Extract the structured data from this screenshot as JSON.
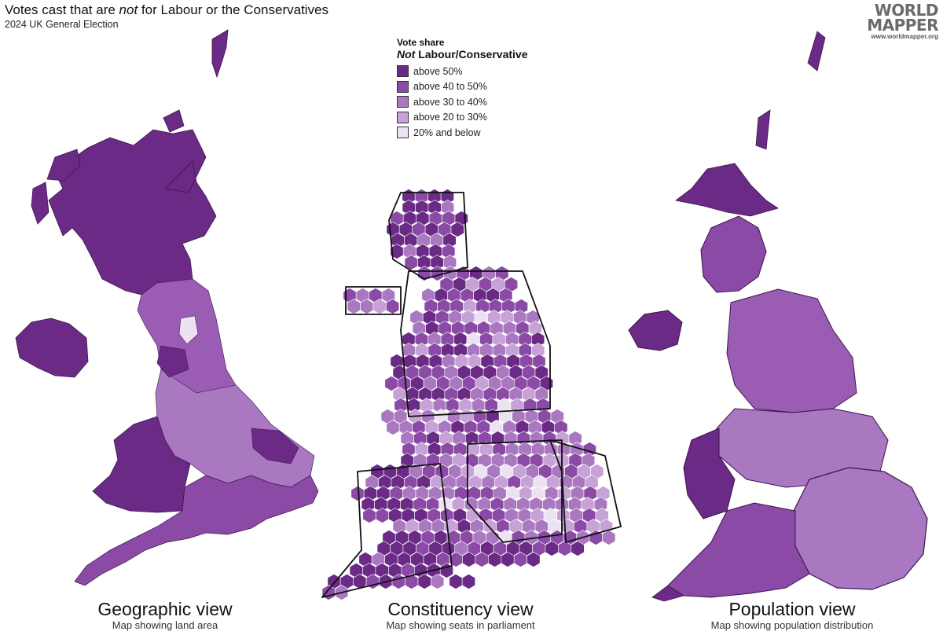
{
  "title": {
    "before": "Votes cast that are ",
    "emphasis": "not",
    "after": " for Labour or the Conservatives"
  },
  "subtitle": "2024 UK General Election",
  "logo": {
    "line1": "WORLD",
    "line2": "MAPPER",
    "url": "www.worldmapper.org"
  },
  "legend": {
    "title": "Vote share",
    "subtitle_emphasis": "Not",
    "subtitle_rest": " Labour/Conservative",
    "items": [
      {
        "label": "above 50%",
        "color": "#6a2a86"
      },
      {
        "label": "above 40 to 50%",
        "color": "#8a4aa5"
      },
      {
        "label": "above 30 to 40%",
        "color": "#a978c0"
      },
      {
        "label": "above 20 to 30%",
        "color": "#c6a2d6"
      },
      {
        "label": "20% and below",
        "color": "#ece2f1"
      }
    ]
  },
  "views": [
    {
      "title": "Geographic view",
      "subtitle": "Map showing land area"
    },
    {
      "title": "Constituency view",
      "subtitle": "Map showing seats in parliament"
    },
    {
      "title": "Population view",
      "subtitle": "Map showing population distribution"
    }
  ]
}
